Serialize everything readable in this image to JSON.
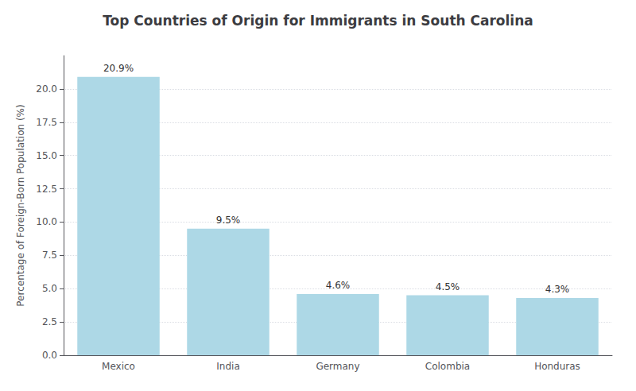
{
  "chart_data": {
    "type": "bar",
    "title": "Top Countries of Origin for Immigrants in South Carolina",
    "ylabel": "Percentage of Foreign-Born Population (%)",
    "categories": [
      "Mexico",
      "India",
      "Germany",
      "Colombia",
      "Honduras"
    ],
    "values": [
      20.9,
      9.5,
      4.6,
      4.5,
      4.3
    ],
    "value_labels": [
      "20.9%",
      "9.5%",
      "4.6%",
      "4.5%",
      "4.3%"
    ],
    "data_labels": true,
    "color": "#add8e6",
    "ylim": [
      0,
      22.5
    ],
    "yticks": [
      {
        "value": 0,
        "label": "0.0"
      },
      2.5,
      {
        "value": 5,
        "label": "5.0"
      },
      7.5,
      {
        "value": 10,
        "label": "10.0"
      },
      12.5,
      {
        "value": 15,
        "label": "15.0"
      },
      17.5,
      {
        "value": 20,
        "label": "20.0"
      }
    ],
    "grid": true
  }
}
